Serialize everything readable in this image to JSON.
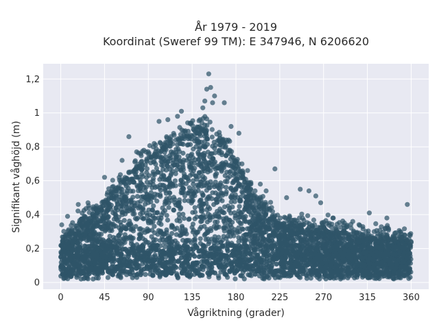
{
  "chart_data": {
    "type": "scatter",
    "title_line1": "År 1979 - 2019",
    "title_line2": "Koordinat (Sweref 99 TM): E 347946, N 6206620",
    "xlabel": "Vågriktning (grader)",
    "ylabel": "Signifikant våghöjd (m)",
    "xlim": [
      -18,
      378
    ],
    "ylim": [
      -0.04,
      1.29
    ],
    "x_ticks": [
      0,
      45,
      90,
      135,
      180,
      225,
      270,
      315,
      360
    ],
    "x_tick_labels": [
      "0",
      "45",
      "90",
      "135",
      "180",
      "225",
      "270",
      "315",
      "360"
    ],
    "y_ticks": [
      0,
      0.2,
      0.4,
      0.6,
      0.8,
      1.0,
      1.2
    ],
    "y_tick_labels": [
      "0",
      "0,2",
      "0,4",
      "0,6",
      "0,8",
      "1",
      "1,2"
    ],
    "grid": true,
    "colors": {
      "marker": "#2f5468",
      "plot_bg": "#e8e9f2",
      "grid": "#ffffff"
    },
    "envelope": {
      "x": [
        0,
        10,
        20,
        30,
        40,
        45,
        50,
        60,
        70,
        80,
        90,
        100,
        110,
        120,
        130,
        135,
        140,
        150,
        160,
        170,
        180,
        190,
        200,
        210,
        220,
        230,
        240,
        250,
        260,
        270,
        280,
        290,
        300,
        315,
        330,
        345,
        360
      ],
      "y_top": [
        0.26,
        0.3,
        0.34,
        0.38,
        0.43,
        0.46,
        0.5,
        0.57,
        0.62,
        0.68,
        0.72,
        0.76,
        0.8,
        0.83,
        0.86,
        0.87,
        0.88,
        0.9,
        0.87,
        0.8,
        0.7,
        0.58,
        0.48,
        0.42,
        0.37,
        0.34,
        0.32,
        0.31,
        0.31,
        0.3,
        0.3,
        0.29,
        0.27,
        0.26,
        0.26,
        0.25,
        0.24
      ],
      "y_bottom": 0.02
    },
    "outliers": [
      {
        "x": 1,
        "y": 0.34
      },
      {
        "x": 7,
        "y": 0.39
      },
      {
        "x": 18,
        "y": 0.46
      },
      {
        "x": 28,
        "y": 0.47
      },
      {
        "x": 45,
        "y": 0.62
      },
      {
        "x": 48,
        "y": 0.53
      },
      {
        "x": 63,
        "y": 0.72
      },
      {
        "x": 70,
        "y": 0.86
      },
      {
        "x": 78,
        "y": 0.77
      },
      {
        "x": 96,
        "y": 0.82
      },
      {
        "x": 101,
        "y": 0.95
      },
      {
        "x": 110,
        "y": 0.96
      },
      {
        "x": 120,
        "y": 0.98
      },
      {
        "x": 124,
        "y": 1.01
      },
      {
        "x": 133,
        "y": 0.94
      },
      {
        "x": 143,
        "y": 0.96
      },
      {
        "x": 146,
        "y": 1.03
      },
      {
        "x": 148,
        "y": 1.07
      },
      {
        "x": 150,
        "y": 1.14
      },
      {
        "x": 152,
        "y": 1.23
      },
      {
        "x": 154,
        "y": 1.15
      },
      {
        "x": 156,
        "y": 1.06
      },
      {
        "x": 158,
        "y": 1.1
      },
      {
        "x": 168,
        "y": 1.06
      },
      {
        "x": 175,
        "y": 0.92
      },
      {
        "x": 183,
        "y": 0.88
      },
      {
        "x": 192,
        "y": 0.66
      },
      {
        "x": 205,
        "y": 0.58
      },
      {
        "x": 211,
        "y": 0.54
      },
      {
        "x": 220,
        "y": 0.67
      },
      {
        "x": 232,
        "y": 0.5
      },
      {
        "x": 246,
        "y": 0.55
      },
      {
        "x": 255,
        "y": 0.54
      },
      {
        "x": 262,
        "y": 0.51
      },
      {
        "x": 267,
        "y": 0.47
      },
      {
        "x": 280,
        "y": 0.38
      },
      {
        "x": 300,
        "y": 0.36
      },
      {
        "x": 317,
        "y": 0.41
      },
      {
        "x": 335,
        "y": 0.38
      },
      {
        "x": 356,
        "y": 0.46
      }
    ]
  }
}
